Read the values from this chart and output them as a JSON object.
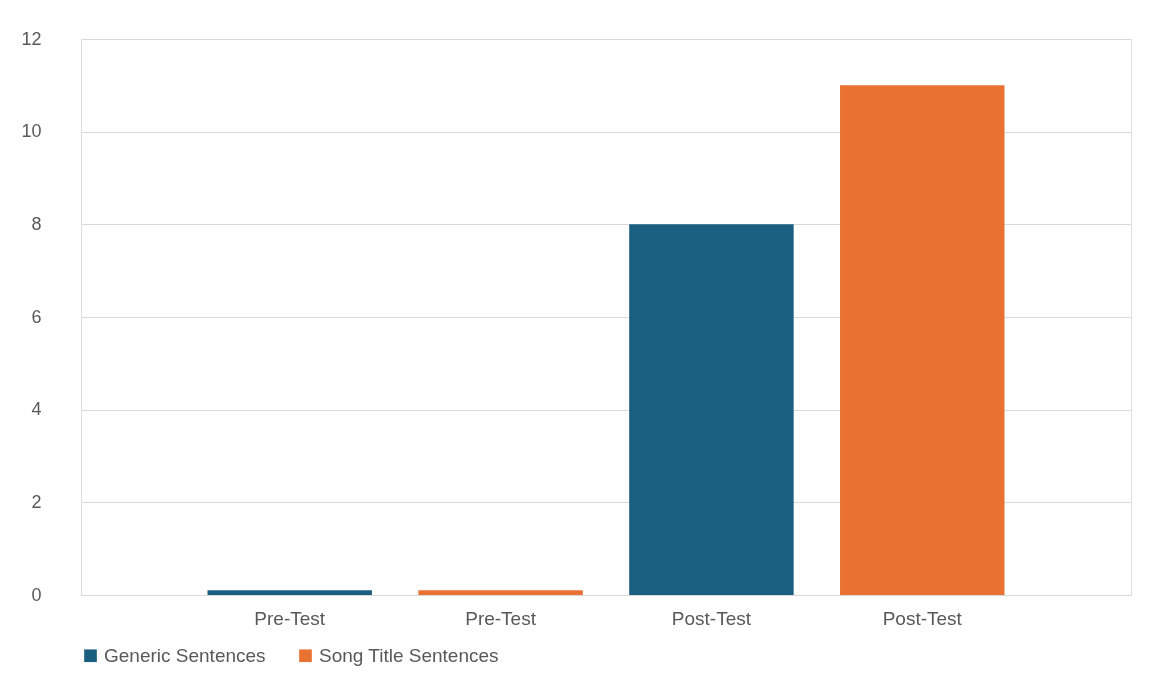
{
  "chart_data": {
    "type": "bar",
    "categories": [
      "Pre-Test",
      "Pre-Test",
      "Post-Test",
      "Post-Test"
    ],
    "series": [
      {
        "name": "Generic Sentences",
        "color": "#1a5e80",
        "values": [
          0.1,
          null,
          8,
          null
        ]
      },
      {
        "name": "Song Title Sentences",
        "color": "#e97132",
        "values": [
          null,
          0.1,
          null,
          11
        ]
      }
    ],
    "ylim": [
      0,
      12
    ],
    "yticks": [
      0,
      2,
      4,
      6,
      8,
      10,
      12
    ],
    "grid": "y",
    "legend": "bottom"
  }
}
